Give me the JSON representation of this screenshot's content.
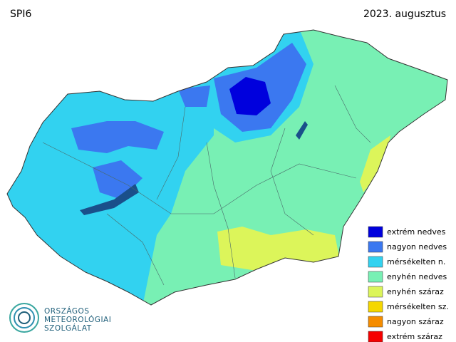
{
  "header": {
    "index": "SPI6",
    "period": "2023. augusztus"
  },
  "legend": [
    {
      "label": "extrém nedves",
      "color": "#0000dd"
    },
    {
      "label": "nagyon nedves",
      "color": "#3b78f0"
    },
    {
      "label": "mérsékelten n.",
      "color": "#32d2f0"
    },
    {
      "label": "enyhén nedves",
      "color": "#78f0b4"
    },
    {
      "label": "enyhén száraz",
      "color": "#dcf55a"
    },
    {
      "label": "mérsékelten sz.",
      "color": "#f5d700"
    },
    {
      "label": "nagyon száraz",
      "color": "#f58c00"
    },
    {
      "label": "extrém száraz",
      "color": "#f50000"
    }
  ],
  "logo": {
    "lines": [
      "ORSZÁGOS",
      "METEOROLÓGIAI",
      "SZOLGÁLAT"
    ]
  }
}
